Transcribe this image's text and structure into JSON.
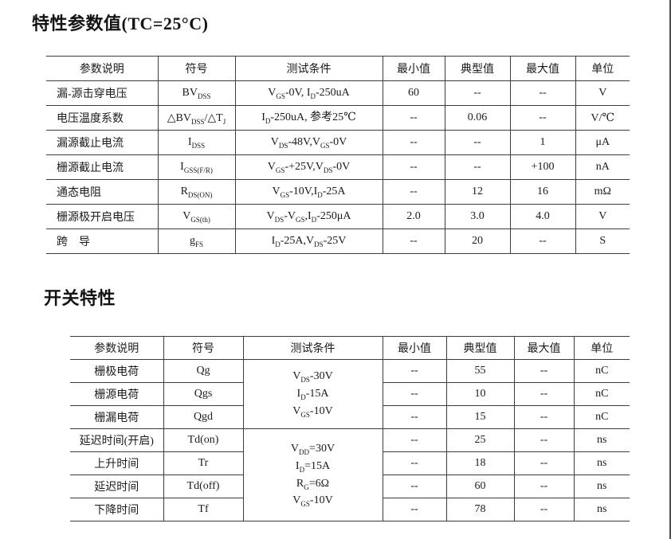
{
  "sections": [
    {
      "title": "特性参数值(TC=25°C)",
      "headers": [
        "参数说明",
        "符号",
        "测试条件",
        "最小值",
        "典型值",
        "最大值",
        "单位"
      ],
      "rows": [
        {
          "param": "漏-源击穿电压",
          "symbol": "BV~DSS~",
          "condition": "V~GS~-0V, I~D~-250uA",
          "min": "60",
          "typ": "--",
          "max": "--",
          "unit": "V"
        },
        {
          "param": "电压温度系数",
          "symbol": "△BV~DSS~/△T~J~",
          "condition": "I~D~-250uA, 参考25℃",
          "min": "--",
          "typ": "0.06",
          "max": "--",
          "unit": "V/℃"
        },
        {
          "param": "漏源截止电流",
          "symbol": "I~DSS~",
          "condition": "V~DS~-48V,V~GS~-0V",
          "min": "--",
          "typ": "--",
          "max": "1",
          "unit": "μA"
        },
        {
          "param": "栅源截止电流",
          "symbol": "I~GSS(F/R)~",
          "condition": "V~GS~-+25V,V~DS~-0V",
          "min": "--",
          "typ": "--",
          "max": "+100",
          "unit": "nA"
        },
        {
          "param": "通态电阻",
          "symbol": "R~DS(ON)~",
          "condition": "V~GS~-10V,I~D~-25A",
          "min": "--",
          "typ": "12",
          "max": "16",
          "unit": "mΩ"
        },
        {
          "param": "栅源极开启电压",
          "symbol": "V~GS(th)~",
          "condition": "V~DS~-V~GS~,I~D~-250μA",
          "min": "2.0",
          "typ": "3.0",
          "max": "4.0",
          "unit": "V"
        },
        {
          "param": "跨　导",
          "symbol": "g~FS~",
          "condition": "I~D~-25A,V~DS~-25V",
          "min": "--",
          "typ": "20",
          "max": "--",
          "unit": "S"
        }
      ]
    },
    {
      "title": "开关特性",
      "headers": [
        "参数说明",
        "符号",
        "测试条件",
        "最小值",
        "典型值",
        "最大值",
        "单位"
      ],
      "rows": [
        {
          "param": "栅极电荷",
          "symbol": "Qg",
          "condition": "V~DS~-30V\nI~D~-15A\nV~GS~-10V",
          "condition_rowspan": 3,
          "min": "--",
          "typ": "55",
          "max": "--",
          "unit": "nC"
        },
        {
          "param": "栅源电荷",
          "symbol": "Qgs",
          "condition": null,
          "min": "--",
          "typ": "10",
          "max": "--",
          "unit": "nC"
        },
        {
          "param": "栅漏电荷",
          "symbol": "Qgd",
          "condition": null,
          "min": "--",
          "typ": "15",
          "max": "--",
          "unit": "nC"
        },
        {
          "param": "延迟时间(开启)",
          "symbol": "Td(on)",
          "condition": "V~DD~=30V\nI~D~=15A\nR~G~=6Ω\nV~GS~-10V",
          "condition_rowspan": 4,
          "min": "--",
          "typ": "25",
          "max": "--",
          "unit": "ns"
        },
        {
          "param": "上升时间",
          "symbol": "Tr",
          "condition": null,
          "min": "--",
          "typ": "18",
          "max": "--",
          "unit": "ns"
        },
        {
          "param": "延迟时间",
          "symbol": "Td(off)",
          "condition": null,
          "min": "--",
          "typ": "60",
          "max": "--",
          "unit": "ns"
        },
        {
          "param": "下降时间",
          "symbol": "Tf",
          "condition": null,
          "min": "--",
          "typ": "78",
          "max": "--",
          "unit": "ns"
        }
      ]
    }
  ],
  "colors": {
    "text": "#1b1b1b",
    "table_border": "#3d3d3d",
    "page_edge": "#4d4d4d"
  }
}
